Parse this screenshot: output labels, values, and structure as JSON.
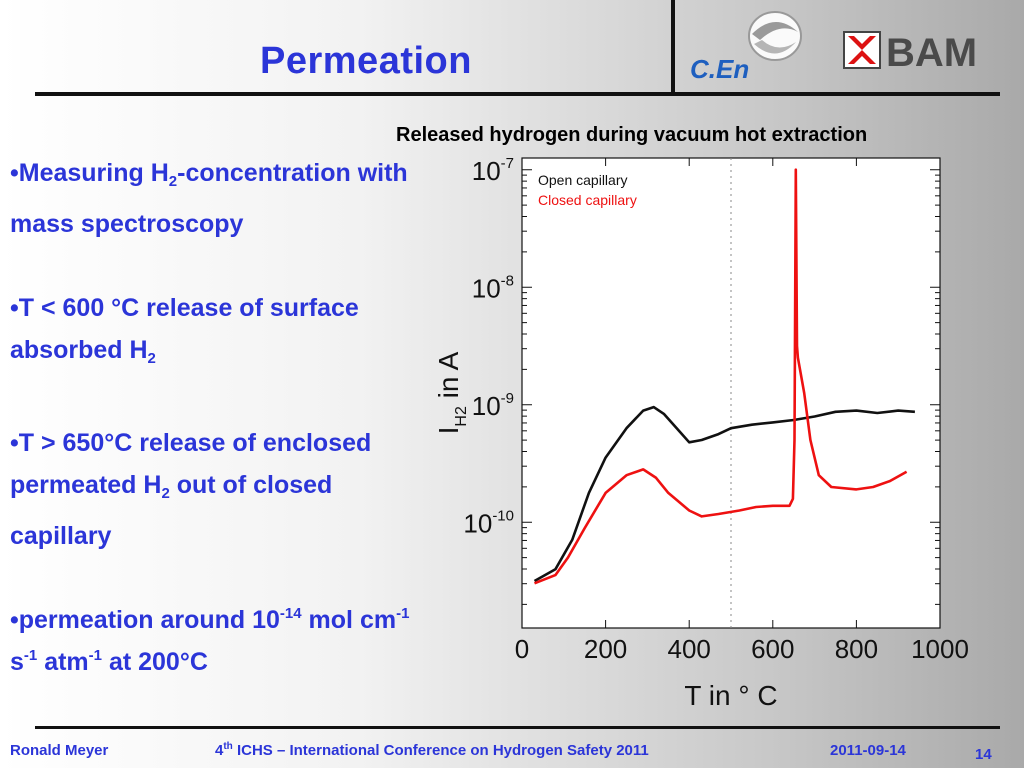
{
  "slide": {
    "title": "Permeation",
    "chart_title": "Released hydrogen during vacuum hot extraction",
    "bullets": [
      {
        "text_a": "•Measuring H",
        "sub": "2",
        "text_b": "-concentration with mass spectroscopy"
      },
      {
        "text_a": "•T < 600 °C release of surface absorbed H",
        "sub": "2",
        "text_b": ""
      },
      {
        "text_a": "•T > 650°C release of enclosed permeated H",
        "sub": "2",
        "text_b": " out of closed capillary"
      },
      {
        "text_a": "•permeation around 10",
        "sup1": "-14",
        "text_b": " mol cm",
        "sup2": "-1",
        "text_c": " s",
        "sup3": "-1",
        "text_d": " atm",
        "sup4": "-1",
        "text_e": "  at 200°C"
      }
    ],
    "logos": {
      "cen": "C.En",
      "bam": "BAM"
    },
    "colors": {
      "title": "#2b35d8",
      "closed": "#ee1111",
      "open": "#111111"
    }
  },
  "footer": {
    "author": "Ronald Meyer",
    "conf_num": "4",
    "conf_sup": "th",
    "conf_text": " ICHS – International Conference on Hydrogen Safety 2011",
    "date": "2011-09-14",
    "page": "14"
  },
  "chart_data": {
    "type": "line",
    "x_axis": {
      "label": "T in ° C",
      "min": 0,
      "max": 1000,
      "ticks": [
        0,
        200,
        400,
        600,
        800,
        1000
      ]
    },
    "y_axis": {
      "label_main": "I",
      "label_sub": "H2",
      "label_rest": " in A",
      "scale": "log",
      "min_exp": -10.9,
      "max_exp": -6.9,
      "ticks": [
        {
          "base": "10",
          "exp": "-7",
          "value": -7
        },
        {
          "base": "10",
          "exp": "-8",
          "value": -8
        },
        {
          "base": "10",
          "exp": "-9",
          "value": -9
        },
        {
          "base": "10",
          "exp": "-10",
          "value": -10
        }
      ]
    },
    "vline_x": 500,
    "series": [
      {
        "name": "Open capillary",
        "color": "#111111",
        "points": [
          [
            30,
            -10.5
          ],
          [
            80,
            -10.4
          ],
          [
            120,
            -10.15
          ],
          [
            160,
            -9.75
          ],
          [
            200,
            -9.45
          ],
          [
            250,
            -9.2
          ],
          [
            290,
            -9.05
          ],
          [
            315,
            -9.02
          ],
          [
            340,
            -9.08
          ],
          [
            370,
            -9.2
          ],
          [
            400,
            -9.32
          ],
          [
            430,
            -9.3
          ],
          [
            470,
            -9.25
          ],
          [
            500,
            -9.2
          ],
          [
            550,
            -9.17
          ],
          [
            600,
            -9.15
          ],
          [
            650,
            -9.13
          ],
          [
            700,
            -9.1
          ],
          [
            750,
            -9.06
          ],
          [
            800,
            -9.05
          ],
          [
            850,
            -9.07
          ],
          [
            900,
            -9.05
          ],
          [
            940,
            -9.06
          ]
        ]
      },
      {
        "name": "Closed capillary",
        "color": "#ee1111",
        "points": [
          [
            30,
            -10.52
          ],
          [
            80,
            -10.45
          ],
          [
            110,
            -10.3
          ],
          [
            150,
            -10.05
          ],
          [
            200,
            -9.75
          ],
          [
            250,
            -9.6
          ],
          [
            290,
            -9.55
          ],
          [
            320,
            -9.62
          ],
          [
            350,
            -9.75
          ],
          [
            400,
            -9.9
          ],
          [
            430,
            -9.95
          ],
          [
            470,
            -9.93
          ],
          [
            520,
            -9.9
          ],
          [
            560,
            -9.87
          ],
          [
            600,
            -9.86
          ],
          [
            640,
            -9.86
          ],
          [
            648,
            -9.8
          ],
          [
            652,
            -9.3
          ],
          [
            655,
            -7.0
          ],
          [
            658,
            -8.5
          ],
          [
            660,
            -8.6
          ],
          [
            675,
            -8.9
          ],
          [
            690,
            -9.3
          ],
          [
            710,
            -9.6
          ],
          [
            740,
            -9.7
          ],
          [
            800,
            -9.72
          ],
          [
            840,
            -9.7
          ],
          [
            880,
            -9.65
          ],
          [
            920,
            -9.57
          ]
        ]
      }
    ]
  }
}
